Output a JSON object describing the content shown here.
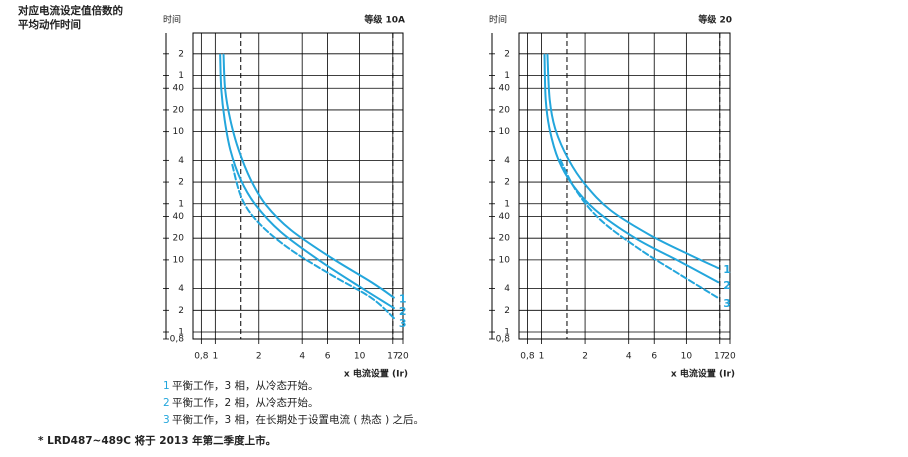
{
  "heading": [
    "对应电流设定值倍数的",
    "平均动作时间"
  ],
  "chart_data": [
    {
      "type": "line",
      "title": "等级 10A",
      "y_label": "时间",
      "x_label": "x 电流设置 (Ir)",
      "log_x": true,
      "log_y": true,
      "grid": true,
      "xlim": [
        0.7,
        20
      ],
      "ylim": [
        0.8,
        14000
      ],
      "xticks": [
        {
          "value": 0.8,
          "label": "0,8"
        },
        1,
        2,
        4,
        6,
        10,
        17,
        20
      ],
      "yticks": [
        {
          "value": 7200,
          "label": "2"
        },
        {
          "value": 3600,
          "label": "1"
        },
        {
          "value": 2400,
          "label": "40"
        },
        {
          "value": 1200,
          "label": "20"
        },
        {
          "value": 600,
          "label": "10"
        },
        {
          "value": 240,
          "label": "4"
        },
        {
          "value": 120,
          "label": "2"
        },
        {
          "value": 60,
          "label": "1"
        },
        40,
        20,
        10,
        4,
        2,
        1,
        {
          "value": 0.8,
          "label": "0,8"
        }
      ],
      "reference_x": [
        1.5,
        17
      ],
      "series": [
        {
          "name": "1",
          "color": "#23a6dc",
          "linestyle": "solid",
          "x": [
            1.14,
            1.17,
            1.27,
            1.45,
            1.76,
            2.24,
            3.34,
            6.36,
            12.1,
            17.3
          ],
          "values": [
            7000,
            2300,
            880,
            337,
            129,
            58,
            26,
            10.7,
            4.9,
            3.0
          ]
        },
        {
          "name": "2",
          "color": "#23a6dc",
          "linestyle": "solid",
          "x": [
            1.08,
            1.1,
            1.16,
            1.27,
            1.5,
            1.9,
            2.84,
            5.43,
            10.3,
            17.3
          ],
          "values": [
            7000,
            2300,
            880,
            337,
            129,
            58,
            24.5,
            9.4,
            4.1,
            2.15
          ]
        },
        {
          "name": "3",
          "color": "#23a6dc",
          "linestyle": "dashed",
          "x": [
            1.31,
            1.54,
            2.06,
            3.34,
            6.36,
            12.1,
            17.3
          ],
          "values": [
            208,
            68,
            30.6,
            13.8,
            6.2,
            2.96,
            1.56
          ]
        }
      ]
    },
    {
      "type": "line",
      "title": "等级 20",
      "y_label": "时间",
      "x_label": "x 电流设置 (Ir)",
      "log_x": true,
      "log_y": true,
      "grid": true,
      "xlim": [
        0.7,
        20
      ],
      "ylim": [
        0.8,
        14000
      ],
      "xticks": [
        {
          "value": 0.8,
          "label": "0,8"
        },
        1,
        2,
        4,
        6,
        10,
        17,
        20
      ],
      "yticks": [
        {
          "value": 7200,
          "label": "2"
        },
        {
          "value": 3600,
          "label": "1"
        },
        {
          "value": 2400,
          "label": "40"
        },
        {
          "value": 1200,
          "label": "20"
        },
        {
          "value": 600,
          "label": "10"
        },
        {
          "value": 240,
          "label": "4"
        },
        {
          "value": 120,
          "label": "2"
        },
        {
          "value": 60,
          "label": "1"
        },
        40,
        20,
        10,
        4,
        2,
        1,
        {
          "value": 0.8,
          "label": "0,8"
        }
      ],
      "reference_x": [
        1.5,
        17
      ],
      "series": [
        {
          "name": "1",
          "color": "#23a6dc",
          "linestyle": "solid",
          "x": [
            1.1,
            1.14,
            1.25,
            1.54,
            2.01,
            2.99,
            5.63,
            10.6,
            16.6
          ],
          "values": [
            7000,
            1670,
            640,
            245,
            110,
            49,
            22,
            11.7,
            7.7
          ]
        },
        {
          "name": "2",
          "color": "#23a6dc",
          "linestyle": "solid",
          "x": [
            1.05,
            1.07,
            1.14,
            1.31,
            1.64,
            2.36,
            4.45,
            9.1,
            16.6
          ],
          "values": [
            7000,
            1670,
            640,
            245,
            110,
            49,
            20,
            9.4,
            4.9
          ]
        },
        {
          "name": "3",
          "color": "#23a6dc",
          "linestyle": "dashed",
          "x": [
            1.35,
            1.72,
            2.55,
            4.82,
            9.1,
            16.6
          ],
          "values": [
            245,
            94,
            36,
            13.8,
            6.2,
            2.96
          ]
        }
      ]
    }
  ],
  "legend": [
    {
      "number": "1",
      "text": "平衡工作，3 相，从冷态开始。"
    },
    {
      "number": "2",
      "text": "平衡工作，2 相，从冷态开始。"
    },
    {
      "number": "3",
      "text": "平衡工作，3 相，在长期处于设置电流 ( 热态 ) 之后。"
    }
  ],
  "footnote": "* LRD487~489C 将于 2013 年第二季度上市。"
}
